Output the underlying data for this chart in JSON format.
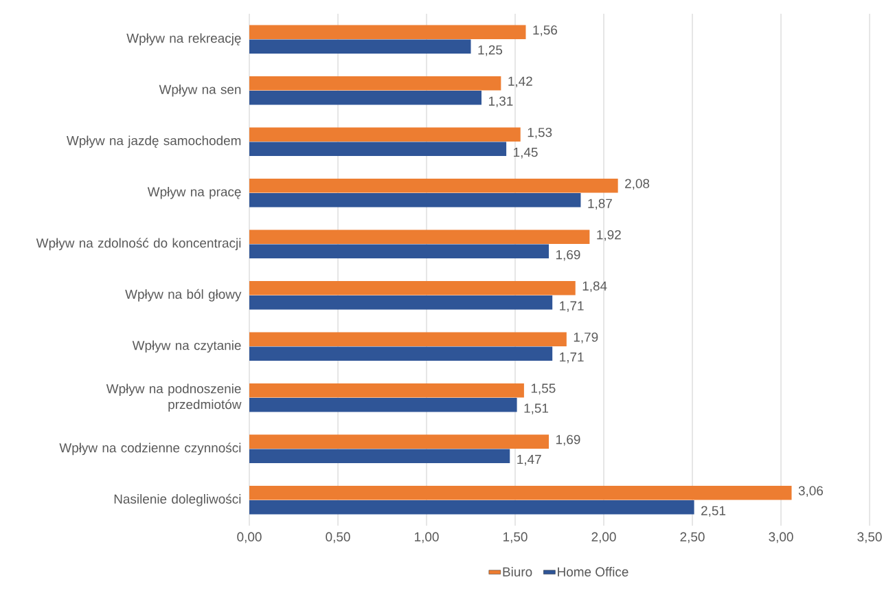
{
  "chart_data": {
    "type": "bar",
    "orientation": "horizontal",
    "categories": [
      "Wpływ na rekreację",
      "Wpływ na sen",
      "Wpływ na jazdę samochodem",
      "Wpływ na pracę",
      "Wpływ na zdolność do koncentracji",
      "Wpływ na ból głowy",
      "Wpływ na czytanie",
      "Wpływ na podnoszenie przedmiotów",
      "Wpływ na codzienne czynności",
      "Nasilenie dolegliwości"
    ],
    "series": [
      {
        "name": "Biuro",
        "color": "#ed7d31",
        "values": [
          1.56,
          1.42,
          1.53,
          2.08,
          1.92,
          1.84,
          1.79,
          1.55,
          1.69,
          3.06
        ],
        "value_labels": [
          "1,56",
          "1,42",
          "1,53",
          "2,08",
          "1,92",
          "1,84",
          "1,79",
          "1,55",
          "1,69",
          "3,06"
        ]
      },
      {
        "name": "Home Office",
        "color": "#2f5597",
        "values": [
          1.25,
          1.31,
          1.45,
          1.87,
          1.69,
          1.71,
          1.71,
          1.51,
          1.47,
          2.51
        ],
        "value_labels": [
          "1,25",
          "1,31",
          "1,45",
          "1,87",
          "1,69",
          "1,71",
          "1,71",
          "1,51",
          "1,47",
          "2,51"
        ]
      }
    ],
    "xlim": [
      0,
      3.5
    ],
    "xticks": [
      {
        "value": 0,
        "label": "0,00"
      },
      {
        "value": 0.5,
        "label": "0,50"
      },
      {
        "value": 1,
        "label": "1,00"
      },
      {
        "value": 1.5,
        "label": "1,50"
      },
      {
        "value": 2,
        "label": "2,00"
      },
      {
        "value": 2.5,
        "label": "2,50"
      },
      {
        "value": 3,
        "label": "3,00"
      },
      {
        "value": 3.5,
        "label": "3,50"
      }
    ],
    "grid": "x",
    "legend": "bottom"
  }
}
